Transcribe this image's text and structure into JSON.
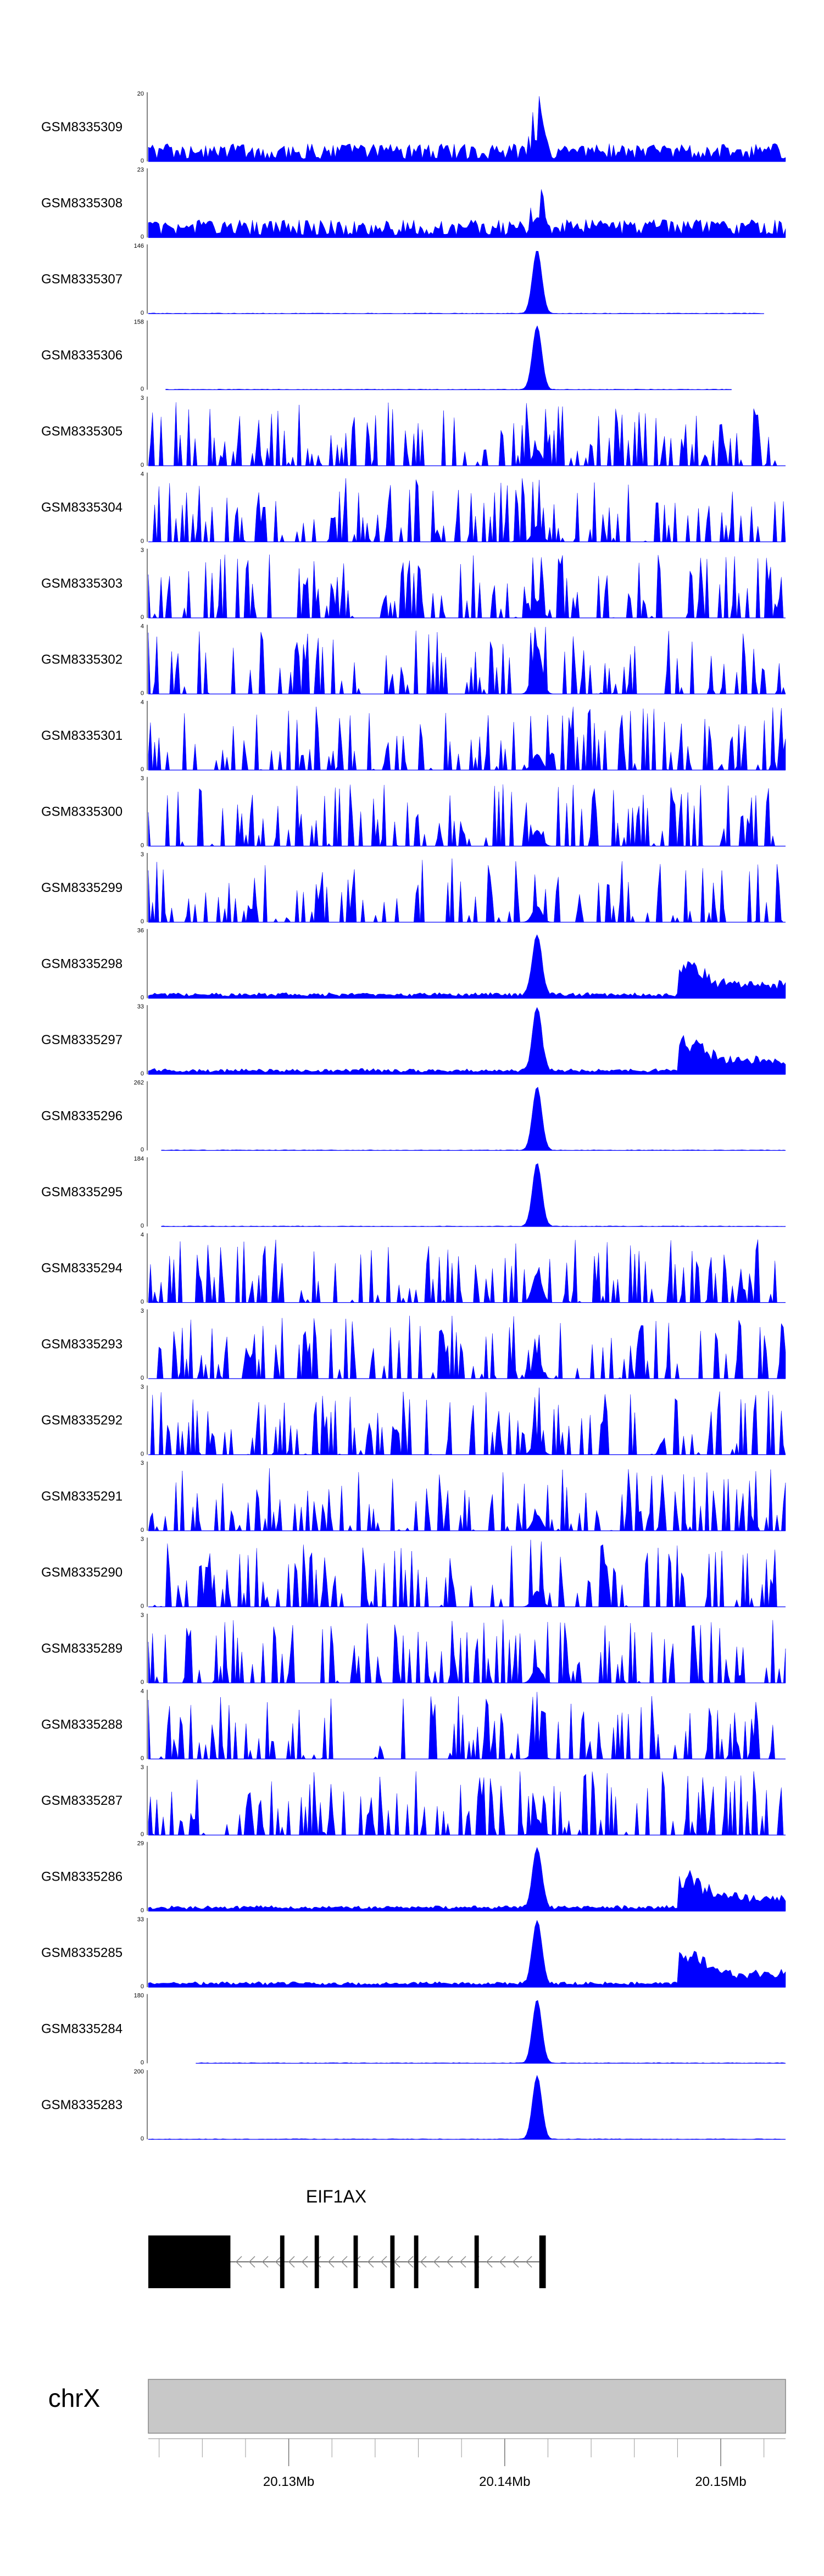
{
  "chart_data": {
    "type": "area",
    "chromosome": "chrX",
    "x_range_mb": [
      20.1235,
      20.153
    ],
    "ticks_mb": [
      20.13,
      20.14,
      20.15
    ],
    "tick_labels": [
      "20.13Mb",
      "20.14Mb",
      "20.15Mb"
    ],
    "fill_color": "#0000ff",
    "series": [
      {
        "name": "GSM8335309",
        "ymax": 20,
        "ylabel_top": "20",
        "ylabel_bottom": "0",
        "profile": "sparse",
        "peak": 0.9,
        "x_start": 20.1235,
        "x_end": 20.153
      },
      {
        "name": "GSM8335308",
        "ymax": 23,
        "ylabel_top": "23",
        "ylabel_bottom": "0",
        "profile": "sparse",
        "peak": 0.85,
        "x_start": 20.1235,
        "x_end": 20.153
      },
      {
        "name": "GSM8335307",
        "ymax": 146,
        "ylabel_top": "146",
        "ylabel_bottom": "0",
        "profile": "peak",
        "peak": 0.95,
        "x_start": 20.1235,
        "x_end": 20.152
      },
      {
        "name": "GSM8335306",
        "ymax": 158,
        "ylabel_top": "158",
        "ylabel_bottom": "0",
        "profile": "peak",
        "peak": 0.95,
        "x_start": 20.1243,
        "x_end": 20.1505
      },
      {
        "name": "GSM8335305",
        "ymax": 3,
        "ylabel_top": "3",
        "ylabel_bottom": "0",
        "profile": "spiky",
        "peak": 0.3,
        "x_start": 20.1235,
        "x_end": 20.153
      },
      {
        "name": "GSM8335304",
        "ymax": 4,
        "ylabel_top": "4",
        "ylabel_bottom": "0",
        "profile": "spiky",
        "peak": 0.3,
        "x_start": 20.1235,
        "x_end": 20.153
      },
      {
        "name": "GSM8335303",
        "ymax": 3,
        "ylabel_top": "3",
        "ylabel_bottom": "0",
        "profile": "spiky",
        "peak": 0.3,
        "x_start": 20.1235,
        "x_end": 20.153
      },
      {
        "name": "GSM8335302",
        "ymax": 4,
        "ylabel_top": "4",
        "ylabel_bottom": "0",
        "profile": "spiky",
        "peak": 0.9,
        "x_start": 20.1235,
        "x_end": 20.153
      },
      {
        "name": "GSM8335301",
        "ymax": 4,
        "ylabel_top": "4",
        "ylabel_bottom": "0",
        "profile": "spiky",
        "peak": 0.3,
        "x_start": 20.1235,
        "x_end": 20.153
      },
      {
        "name": "GSM8335300",
        "ymax": 3,
        "ylabel_top": "3",
        "ylabel_bottom": "0",
        "profile": "spiky",
        "peak": 0.3,
        "x_start": 20.1235,
        "x_end": 20.153
      },
      {
        "name": "GSM8335299",
        "ymax": 3,
        "ylabel_top": "3",
        "ylabel_bottom": "0",
        "profile": "spiky",
        "peak": 0.3,
        "x_start": 20.1235,
        "x_end": 20.153
      },
      {
        "name": "GSM8335298",
        "ymax": 36,
        "ylabel_top": "36",
        "ylabel_bottom": "0",
        "profile": "dense",
        "peak": 0.9,
        "x_start": 20.1235,
        "x_end": 20.153
      },
      {
        "name": "GSM8335297",
        "ymax": 33,
        "ylabel_top": "33",
        "ylabel_bottom": "0",
        "profile": "dense",
        "peak": 0.95,
        "x_start": 20.1235,
        "x_end": 20.153
      },
      {
        "name": "GSM8335296",
        "ymax": 262,
        "ylabel_top": "262",
        "ylabel_bottom": "0",
        "profile": "peak",
        "peak": 0.95,
        "x_start": 20.1241,
        "x_end": 20.153
      },
      {
        "name": "GSM8335295",
        "ymax": 184,
        "ylabel_top": "184",
        "ylabel_bottom": "0",
        "profile": "peak",
        "peak": 0.95,
        "x_start": 20.1241,
        "x_end": 20.153
      },
      {
        "name": "GSM8335294",
        "ymax": 4,
        "ylabel_top": "4",
        "ylabel_bottom": "0",
        "profile": "spiky",
        "peak": 0.55,
        "x_start": 20.1235,
        "x_end": 20.153
      },
      {
        "name": "GSM8335293",
        "ymax": 3,
        "ylabel_top": "3",
        "ylabel_bottom": "0",
        "profile": "spiky",
        "peak": 0.3,
        "x_start": 20.1235,
        "x_end": 20.153
      },
      {
        "name": "GSM8335292",
        "ymax": 3,
        "ylabel_top": "3",
        "ylabel_bottom": "0",
        "profile": "spiky",
        "peak": 0.3,
        "x_start": 20.1235,
        "x_end": 20.153
      },
      {
        "name": "GSM8335291",
        "ymax": 3,
        "ylabel_top": "3",
        "ylabel_bottom": "0",
        "profile": "spiky",
        "peak": 0.3,
        "x_start": 20.1235,
        "x_end": 20.153
      },
      {
        "name": "GSM8335290",
        "ymax": 3,
        "ylabel_top": "3",
        "ylabel_bottom": "0",
        "profile": "spiky",
        "peak": 0.3,
        "x_start": 20.1235,
        "x_end": 20.153
      },
      {
        "name": "GSM8335289",
        "ymax": 3,
        "ylabel_top": "3",
        "ylabel_bottom": "0",
        "profile": "spiky",
        "peak": 0.3,
        "x_start": 20.1235,
        "x_end": 20.153
      },
      {
        "name": "GSM8335288",
        "ymax": 4,
        "ylabel_top": "4",
        "ylabel_bottom": "0",
        "profile": "spiky",
        "peak": 0.3,
        "x_start": 20.1235,
        "x_end": 20.153
      },
      {
        "name": "GSM8335287",
        "ymax": 3,
        "ylabel_top": "3",
        "ylabel_bottom": "0",
        "profile": "spiky",
        "peak": 0.3,
        "x_start": 20.1235,
        "x_end": 20.153
      },
      {
        "name": "GSM8335286",
        "ymax": 29,
        "ylabel_top": "29",
        "ylabel_bottom": "0",
        "profile": "dense",
        "peak": 0.9,
        "x_start": 20.1235,
        "x_end": 20.153
      },
      {
        "name": "GSM8335285",
        "ymax": 33,
        "ylabel_top": "33",
        "ylabel_bottom": "0",
        "profile": "dense",
        "peak": 0.95,
        "x_start": 20.1235,
        "x_end": 20.153
      },
      {
        "name": "GSM8335284",
        "ymax": 180,
        "ylabel_top": "180",
        "ylabel_bottom": "0",
        "profile": "peak",
        "peak": 0.95,
        "x_start": 20.1257,
        "x_end": 20.153
      },
      {
        "name": "GSM8335283",
        "ymax": 200,
        "ylabel_top": "200",
        "ylabel_bottom": "0",
        "profile": "peak",
        "peak": 0.95,
        "x_start": 20.1235,
        "x_end": 20.153
      }
    ],
    "gene": {
      "name": "EIF1AX",
      "strand": "-",
      "start_mb": 20.1235,
      "end_mb": 20.1419,
      "exons": [
        {
          "start": 20.1235,
          "end": 20.1273
        },
        {
          "start": 20.1296,
          "end": 20.1298
        },
        {
          "start": 20.1312,
          "end": 20.1314
        },
        {
          "start": 20.133,
          "end": 20.1332
        },
        {
          "start": 20.1347,
          "end": 20.1349
        },
        {
          "start": 20.1358,
          "end": 20.136
        },
        {
          "start": 20.1386,
          "end": 20.1388
        },
        {
          "start": 20.1416,
          "end": 20.1419
        }
      ]
    }
  }
}
